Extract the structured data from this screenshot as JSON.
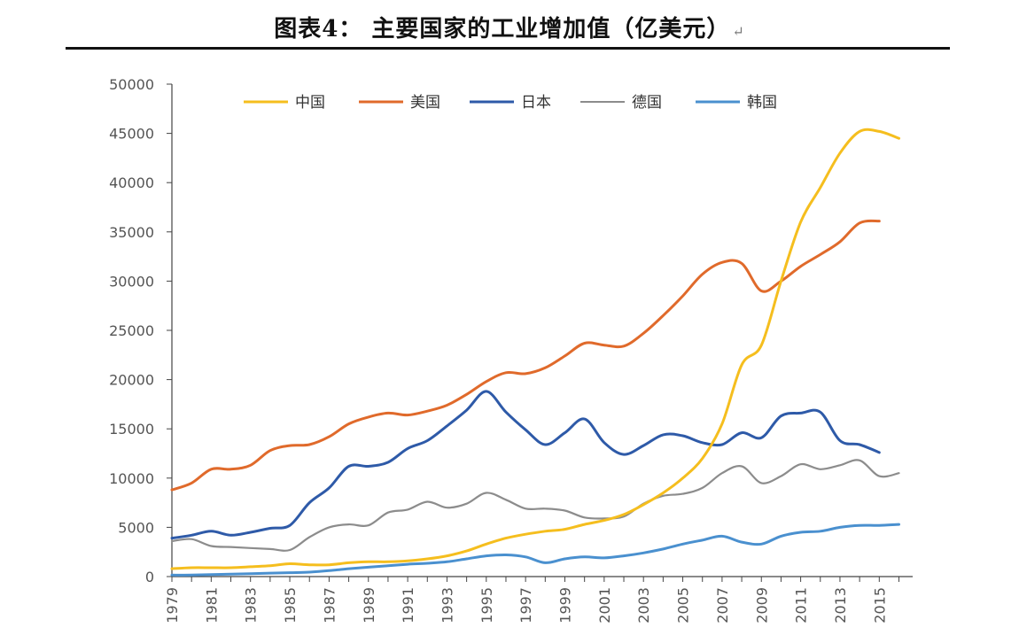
{
  "header": {
    "title": "图表4：  主要国家的工业增加值（亿美元）",
    "return_mark": "↵"
  },
  "chart_data": {
    "type": "line",
    "title": "图表4：  主要国家的工业增加值（亿美元）",
    "xlabel": "",
    "ylabel": "",
    "ylim": [
      0,
      50000
    ],
    "xlim": [
      1979,
      2016
    ],
    "yticks": [
      0,
      5000,
      10000,
      15000,
      20000,
      25000,
      30000,
      35000,
      40000,
      45000,
      50000
    ],
    "ytick_labels": [
      "0",
      "5000",
      "10000",
      "15000",
      "20000",
      "25000",
      "30000",
      "35000",
      "40000",
      "45000",
      "50000"
    ],
    "xticks": [
      1979,
      1981,
      1983,
      1985,
      1987,
      1989,
      1991,
      1993,
      1995,
      1997,
      1999,
      2001,
      2003,
      2005,
      2007,
      2009,
      2011,
      2013,
      2015
    ],
    "xtick_labels": [
      "1979",
      "1981",
      "1983",
      "1985",
      "1987",
      "1989",
      "1991",
      "1993",
      "1995",
      "1997",
      "1999",
      "2001",
      "2003",
      "2005",
      "2007",
      "2009",
      "2011",
      "2013",
      "2015"
    ],
    "grid": false,
    "legend_position": "top",
    "series": [
      {
        "name": "中国",
        "color": "#f5be1e",
        "x": [
          1979,
          1980,
          1981,
          1982,
          1983,
          1984,
          1985,
          1986,
          1987,
          1988,
          1989,
          1990,
          1991,
          1992,
          1993,
          1994,
          1995,
          1996,
          1997,
          1998,
          1999,
          2000,
          2001,
          2002,
          2003,
          2004,
          2005,
          2006,
          2007,
          2008,
          2009,
          2010,
          2011,
          2012,
          2013,
          2014,
          2015,
          2016
        ],
        "values": [
          800,
          900,
          900,
          900,
          1000,
          1100,
          1300,
          1200,
          1200,
          1400,
          1500,
          1500,
          1600,
          1800,
          2100,
          2600,
          3300,
          3900,
          4300,
          4600,
          4800,
          5300,
          5700,
          6300,
          7300,
          8500,
          10000,
          12000,
          15500,
          21500,
          23500,
          30000,
          36000,
          39500,
          43000,
          45200,
          45200,
          44500
        ]
      },
      {
        "name": "美国",
        "color": "#e06a2b",
        "x": [
          1979,
          1980,
          1981,
          1982,
          1983,
          1984,
          1985,
          1986,
          1987,
          1988,
          1989,
          1990,
          1991,
          1992,
          1993,
          1994,
          1995,
          1996,
          1997,
          1998,
          1999,
          2000,
          2001,
          2002,
          2003,
          2004,
          2005,
          2006,
          2007,
          2008,
          2009,
          2010,
          2011,
          2012,
          2013,
          2014,
          2015
        ],
        "values": [
          8800,
          9500,
          10900,
          10900,
          11300,
          12800,
          13300,
          13400,
          14200,
          15500,
          16200,
          16600,
          16400,
          16800,
          17400,
          18500,
          19800,
          20700,
          20600,
          21200,
          22400,
          23700,
          23500,
          23400,
          24700,
          26500,
          28500,
          30700,
          31900,
          31800,
          29000,
          30000,
          31500,
          32700,
          34000,
          35900,
          36100
        ]
      },
      {
        "name": "日本",
        "color": "#2e5aa8",
        "x": [
          1979,
          1980,
          1981,
          1982,
          1983,
          1984,
          1985,
          1986,
          1987,
          1988,
          1989,
          1990,
          1991,
          1992,
          1993,
          1994,
          1995,
          1996,
          1997,
          1998,
          1999,
          2000,
          2001,
          2002,
          2003,
          2004,
          2005,
          2006,
          2007,
          2008,
          2009,
          2010,
          2011,
          2012,
          2013,
          2014,
          2015
        ],
        "values": [
          3900,
          4200,
          4600,
          4200,
          4500,
          4900,
          5200,
          7500,
          9000,
          11200,
          11200,
          11600,
          13000,
          13800,
          15300,
          16900,
          18800,
          16700,
          14900,
          13400,
          14600,
          16000,
          13600,
          12400,
          13300,
          14400,
          14300,
          13600,
          13400,
          14600,
          14100,
          16300,
          16600,
          16700,
          13800,
          13400,
          12600
        ]
      },
      {
        "name": "德国",
        "color": "#8c8c8c",
        "x": [
          1979,
          1980,
          1981,
          1982,
          1983,
          1984,
          1985,
          1986,
          1987,
          1988,
          1989,
          1990,
          1991,
          1992,
          1993,
          1994,
          1995,
          1996,
          1997,
          1998,
          1999,
          2000,
          2001,
          2002,
          2003,
          2004,
          2005,
          2006,
          2007,
          2008,
          2009,
          2010,
          2011,
          2012,
          2013,
          2014,
          2015,
          2016
        ],
        "values": [
          3600,
          3800,
          3100,
          3000,
          2900,
          2800,
          2700,
          4000,
          5000,
          5300,
          5200,
          6500,
          6800,
          7600,
          7000,
          7400,
          8500,
          7800,
          6900,
          6900,
          6700,
          6000,
          5900,
          6100,
          7400,
          8200,
          8400,
          9000,
          10500,
          11200,
          9500,
          10200,
          11400,
          10900,
          11300,
          11800,
          10200,
          10500
        ]
      },
      {
        "name": "韩国",
        "color": "#4a90cf",
        "x": [
          1979,
          1980,
          1981,
          1982,
          1983,
          1984,
          1985,
          1986,
          1987,
          1988,
          1989,
          1990,
          1991,
          1992,
          1993,
          1994,
          1995,
          1996,
          1997,
          1998,
          1999,
          2000,
          2001,
          2002,
          2003,
          2004,
          2005,
          2006,
          2007,
          2008,
          2009,
          2010,
          2011,
          2012,
          2013,
          2014,
          2015,
          2016
        ],
        "values": [
          150,
          150,
          200,
          250,
          300,
          350,
          400,
          450,
          600,
          800,
          950,
          1100,
          1250,
          1350,
          1500,
          1800,
          2100,
          2200,
          2000,
          1400,
          1800,
          2000,
          1900,
          2100,
          2400,
          2800,
          3300,
          3700,
          4100,
          3500,
          3300,
          4100,
          4500,
          4600,
          5000,
          5200,
          5200,
          5300
        ]
      }
    ]
  }
}
